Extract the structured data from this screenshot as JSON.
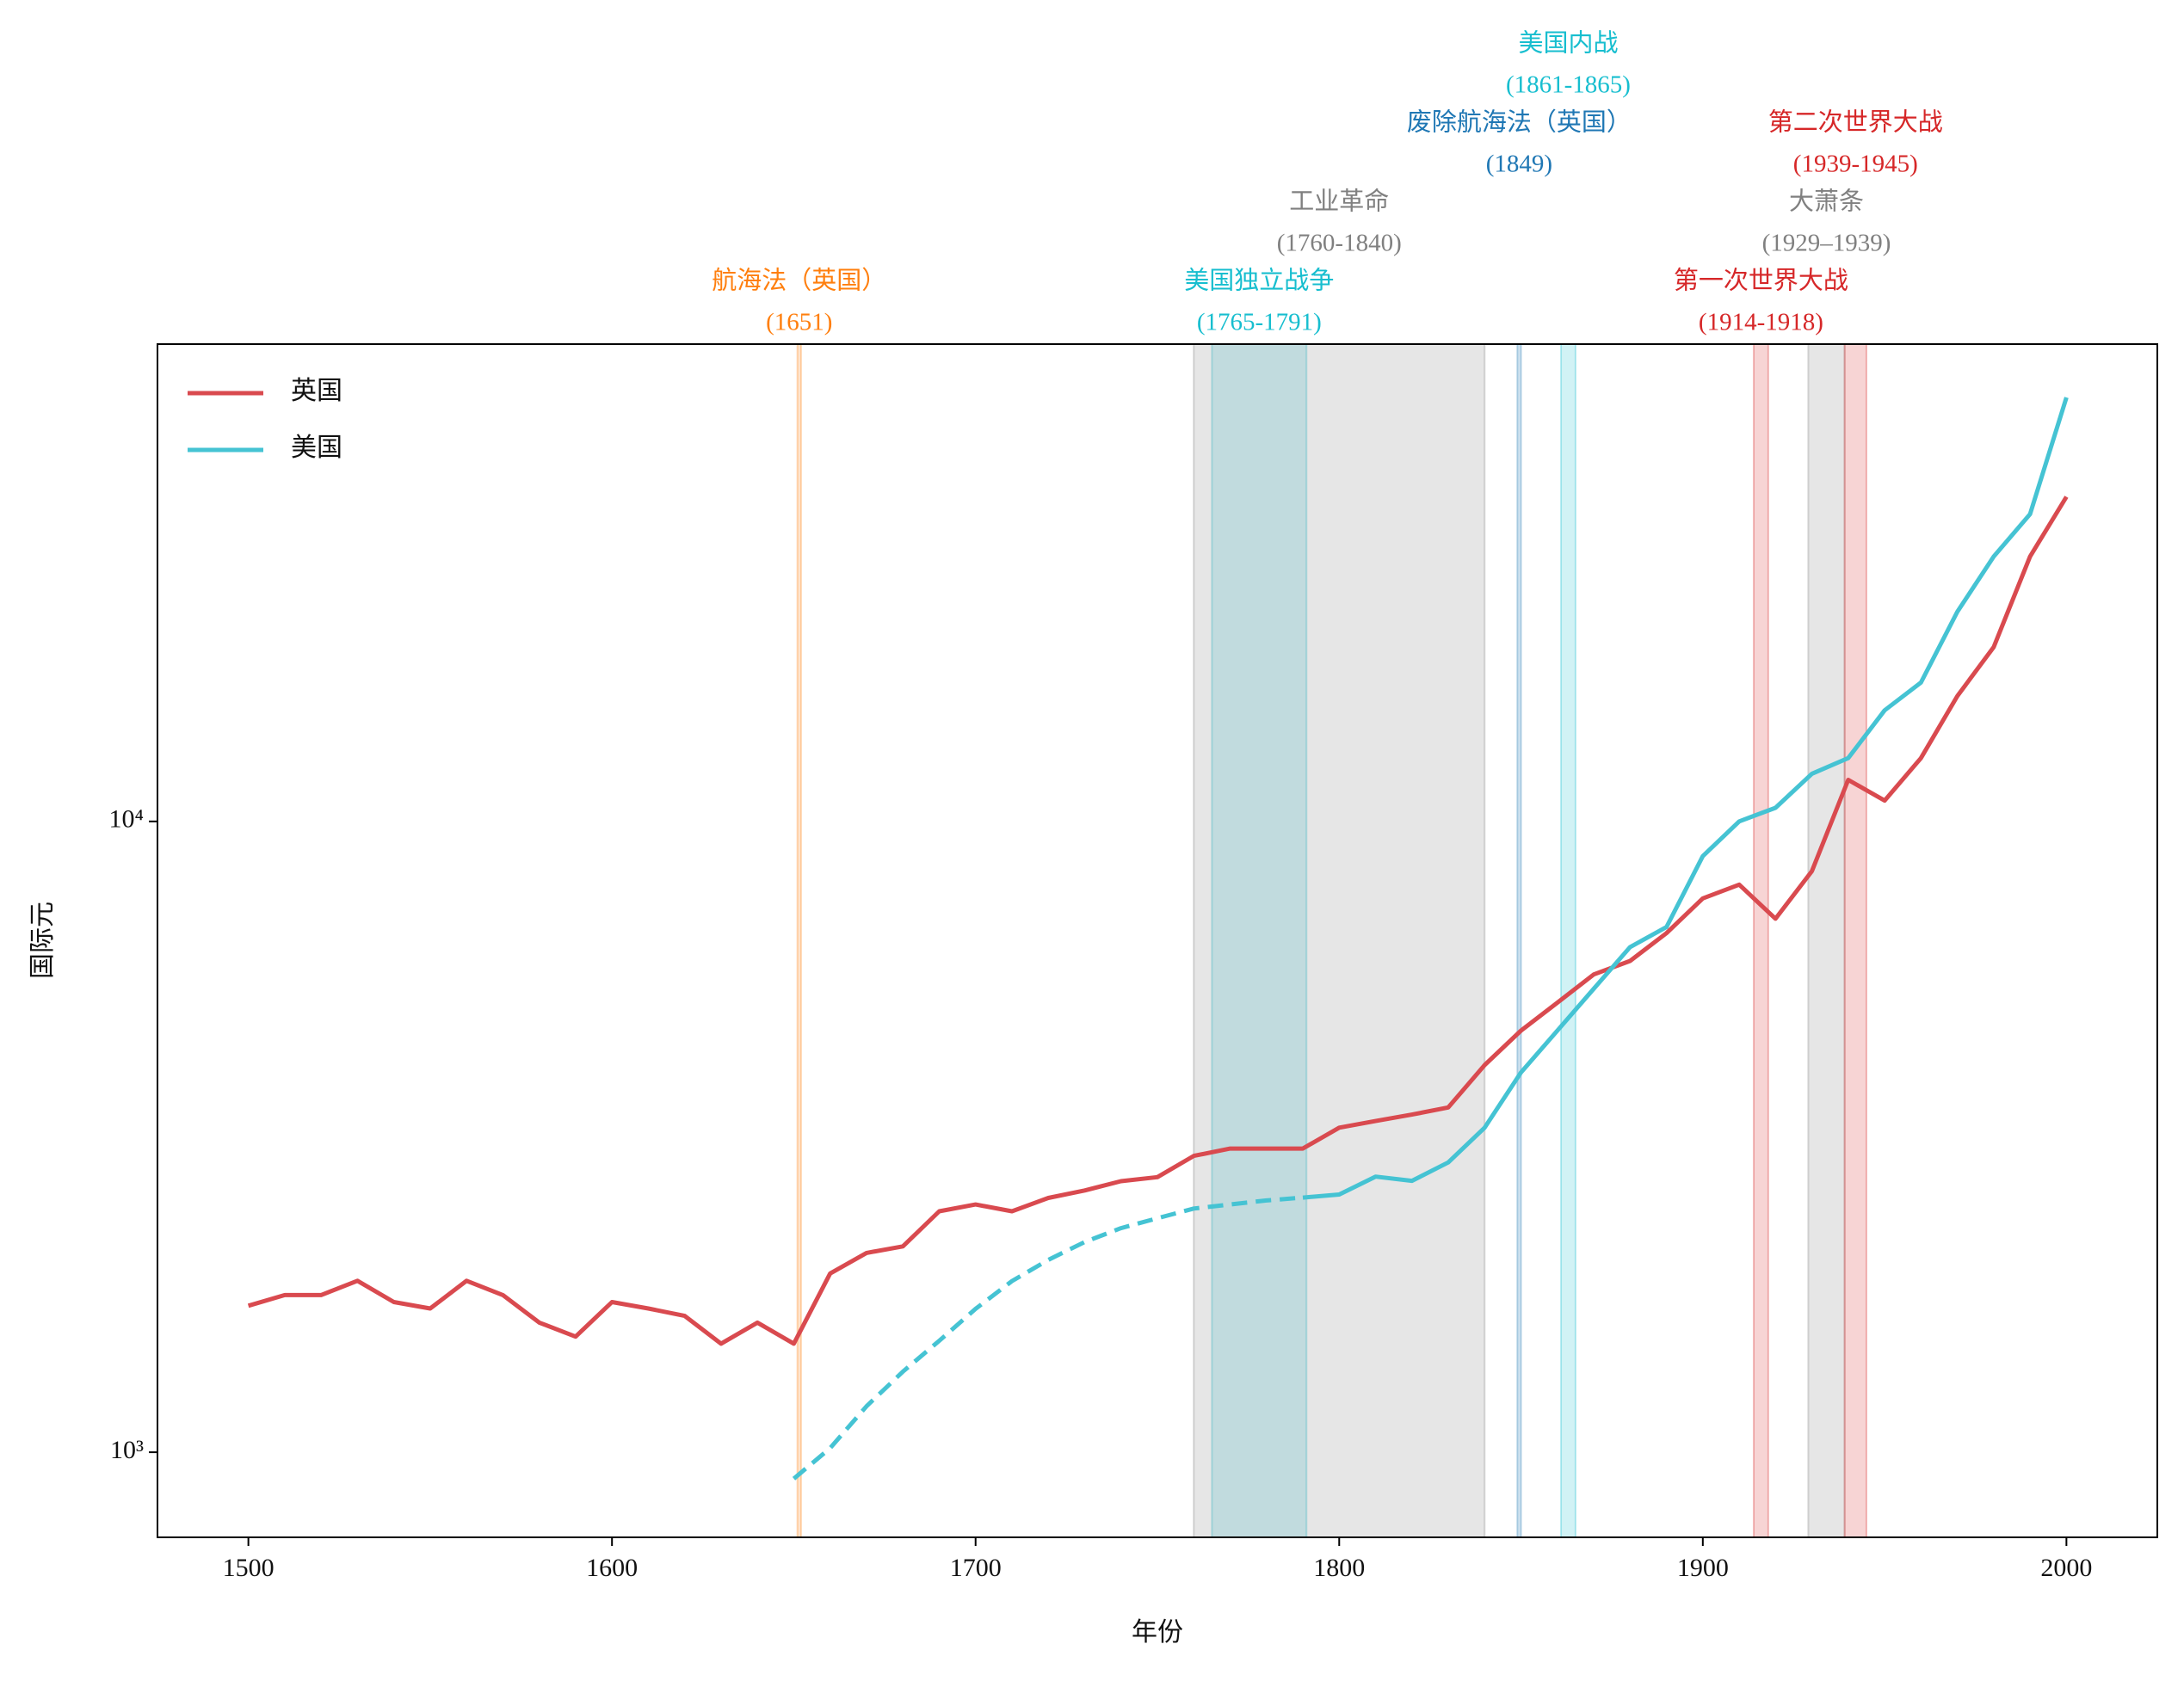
{
  "chart_data": {
    "type": "line",
    "xlabel": "年份",
    "ylabel": "国际元",
    "x": [
      1500,
      1510,
      1520,
      1530,
      1540,
      1550,
      1560,
      1570,
      1580,
      1590,
      1600,
      1610,
      1620,
      1630,
      1640,
      1650,
      1660,
      1670,
      1680,
      1690,
      1700,
      1710,
      1720,
      1730,
      1740,
      1750,
      1760,
      1770,
      1780,
      1790,
      1800,
      1810,
      1820,
      1830,
      1840,
      1850,
      1860,
      1870,
      1880,
      1890,
      1900,
      1910,
      1920,
      1930,
      1940,
      1950,
      1960,
      1970,
      1980,
      1990,
      2000
    ],
    "series": [
      {
        "name": "英国",
        "color": "#d94a4f",
        "values": [
          1707,
          1775,
          1775,
          1870,
          1730,
          1690,
          1870,
          1775,
          1605,
          1525,
          1730,
          1690,
          1645,
          1486,
          1605,
          1486,
          1920,
          2070,
          2120,
          2410,
          2470,
          2410,
          2530,
          2600,
          2690,
          2730,
          2950,
          3030,
          3030,
          3030,
          3270,
          3350,
          3430,
          3520,
          4110,
          4660,
          5160,
          5720,
          6010,
          6650,
          7550,
          7940,
          7010,
          8340,
          11640,
          10790,
          12600,
          15800,
          18900,
          26300,
          32700
        ]
      },
      {
        "name": "美国",
        "color": "#45c3d3",
        "dashed_before": 1800,
        "values": [
          null,
          null,
          null,
          null,
          null,
          null,
          null,
          null,
          null,
          null,
          null,
          null,
          null,
          null,
          null,
          908,
          1015,
          1183,
          1342,
          1502,
          1688,
          1868,
          2018,
          2154,
          2266,
          2349,
          2434,
          2470,
          2507,
          2533,
          2562,
          2735,
          2693,
          2880,
          3270,
          4000,
          4660,
          5430,
          6320,
          6800,
          8810,
          10000,
          10510,
          11900,
          12600,
          15000,
          16600,
          21500,
          26300,
          30700,
          47000
        ]
      }
    ],
    "xlim": [
      1475,
      2025
    ],
    "xticks": [
      1500,
      1600,
      1700,
      1800,
      1900,
      2000
    ],
    "ylim": [
      733,
      57100
    ],
    "log_y": true,
    "yticks": [
      {
        "value": 1000,
        "label": "10³"
      },
      {
        "value": 10000,
        "label": "10⁴"
      }
    ],
    "legend": "upper left",
    "annotations": [
      {
        "text": "航海法（英国）",
        "period": "(1651)",
        "start": 1651,
        "end": 1651,
        "color": "#ff7f0e"
      },
      {
        "text": "美国独立战争",
        "period": "(1765-1791)",
        "start": 1765,
        "end": 1791,
        "color": "#17becf"
      },
      {
        "text": "工业革命",
        "period": "(1760-1840)",
        "start": 1760,
        "end": 1840,
        "color": "#808080"
      },
      {
        "text": "废除航海法（英国）",
        "period": "(1849)",
        "start": 1849,
        "end": 1849,
        "color": "#1f77b4"
      },
      {
        "text": "美国内战",
        "period": "(1861-1865)",
        "start": 1861,
        "end": 1865,
        "color": "#17becf"
      },
      {
        "text": "第一次世界大战",
        "period": "(1914-1918)",
        "start": 1914,
        "end": 1918,
        "color": "#d62728"
      },
      {
        "text": "大萧条",
        "period": "(1929–1939)",
        "start": 1929,
        "end": 1939,
        "color": "#808080"
      },
      {
        "text": "第二次世界大战",
        "period": "(1939-1945)",
        "start": 1939,
        "end": 1945,
        "color": "#d62728"
      }
    ]
  }
}
